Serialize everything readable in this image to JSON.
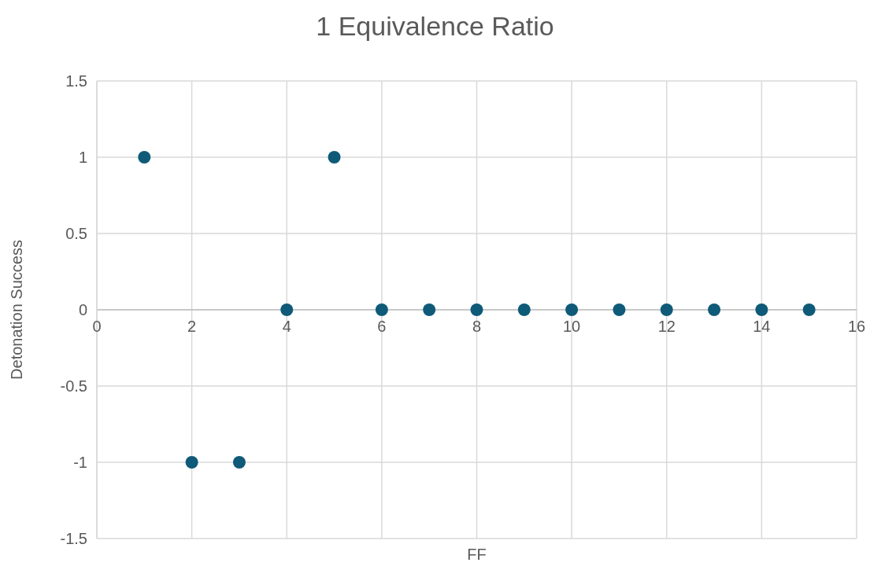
{
  "chart_data": {
    "type": "scatter",
    "title": "1 Equivalence Ratio",
    "xlabel": "FF",
    "ylabel": "Detonation Success",
    "x": [
      1,
      2,
      3,
      4,
      5,
      6,
      7,
      8,
      9,
      10,
      11,
      12,
      13,
      14,
      15
    ],
    "series": [
      {
        "color": "#0e5a78",
        "values": [
          1,
          -1,
          -1,
          0,
          1,
          0,
          0,
          0,
          0,
          0,
          0,
          0,
          0,
          0,
          0
        ]
      }
    ],
    "xlim": [
      0,
      16
    ],
    "xticks": [
      0,
      2,
      4,
      6,
      8,
      10,
      12,
      14,
      16
    ],
    "ylim": [
      -1.5,
      1.5
    ],
    "yticks": [
      -1.5,
      -1,
      -0.5,
      0,
      0.5,
      1,
      1.5
    ],
    "grid": true,
    "marker": "circle"
  }
}
